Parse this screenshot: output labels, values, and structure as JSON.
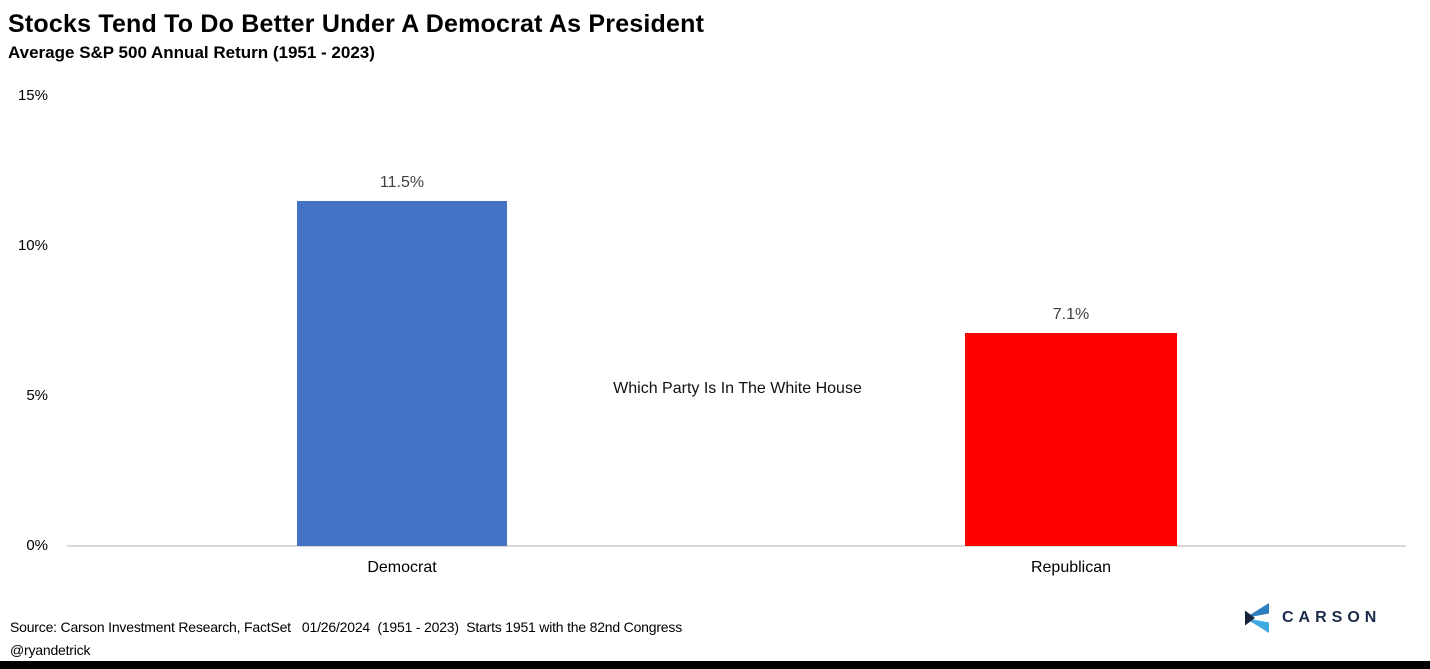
{
  "header": {
    "title": "Stocks Tend To Do Better Under A Democrat As President",
    "subtitle": "Average S&P 500 Annual Return (1951 - 2023)"
  },
  "chart_data": {
    "type": "bar",
    "title": "Stocks Tend To Do Better Under A Democrat As President",
    "subtitle": "Average S&P 500 Annual Return (1951 - 2023)",
    "categories": [
      "Democrat",
      "Republican"
    ],
    "values": [
      11.5,
      7.1
    ],
    "value_labels": [
      "11.5%",
      "7.1%"
    ],
    "bar_colors": [
      "#4472C4",
      "#FF0000"
    ],
    "value_label_color": "#404040",
    "xlabel": "",
    "ylabel": "",
    "ylim": [
      0,
      15
    ],
    "yticks": [
      "15%",
      "10%",
      "5%",
      "0%"
    ],
    "ytick_values": [
      15,
      10,
      5,
      0
    ],
    "grid": false,
    "legend_position": "none",
    "annotation": "Which Party Is In The White House",
    "axis_line_color": "#D9D9D9"
  },
  "footer": {
    "source_line": "Source: Carson Investment Research, FactSet   01/26/2024  (1951 - 2023)  Starts 1951 with the 82nd Congress",
    "handle": "@ryandetrick"
  },
  "branding": {
    "logo_text": "CARSON",
    "navy": "#1B2B4A",
    "icon_blue_top": "#2E7FC2",
    "icon_blue_bottom": "#3FA9E1",
    "icon_navy": "#16243D"
  }
}
